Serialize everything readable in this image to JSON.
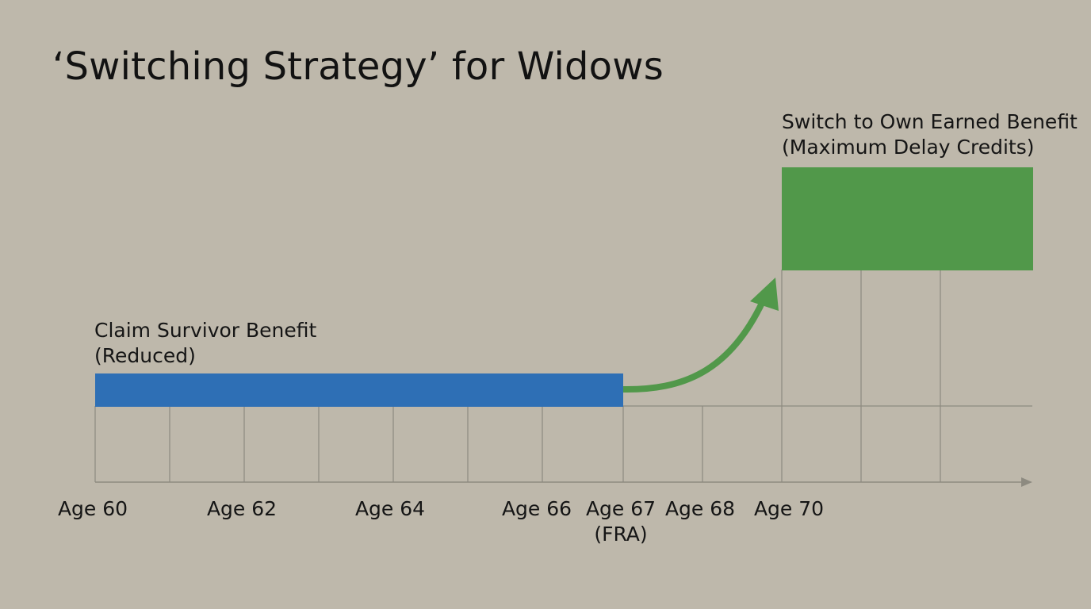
{
  "title": "‘Switching Strategy’ for Widows",
  "annotations": {
    "survivor_line1": "Claim Survivor Benefit",
    "survivor_line2": "(Reduced)",
    "own_line1": "Switch to Own Earned Benefit",
    "own_line2": "(Maximum Delay Credits)"
  },
  "axis": {
    "ticks": [
      {
        "line1": "Age 60",
        "line2": ""
      },
      {
        "line1": "Age 62",
        "line2": ""
      },
      {
        "line1": "Age 64",
        "line2": ""
      },
      {
        "line1": "Age 66",
        "line2": ""
      },
      {
        "line1": "Age 67",
        "line2": "(FRA)"
      },
      {
        "line1": "Age 68",
        "line2": ""
      },
      {
        "line1": "Age 70",
        "line2": ""
      }
    ]
  },
  "colors": {
    "background": "#beb8ab",
    "survivor_bar": "#2e6fb5",
    "own_bar": "#51984a",
    "arrow": "#51984a",
    "grid": "#8d8a80"
  },
  "icons": {
    "transition_arrow": "curved-arrow-up-right-icon",
    "axis_arrow": "arrow-right-icon"
  }
}
